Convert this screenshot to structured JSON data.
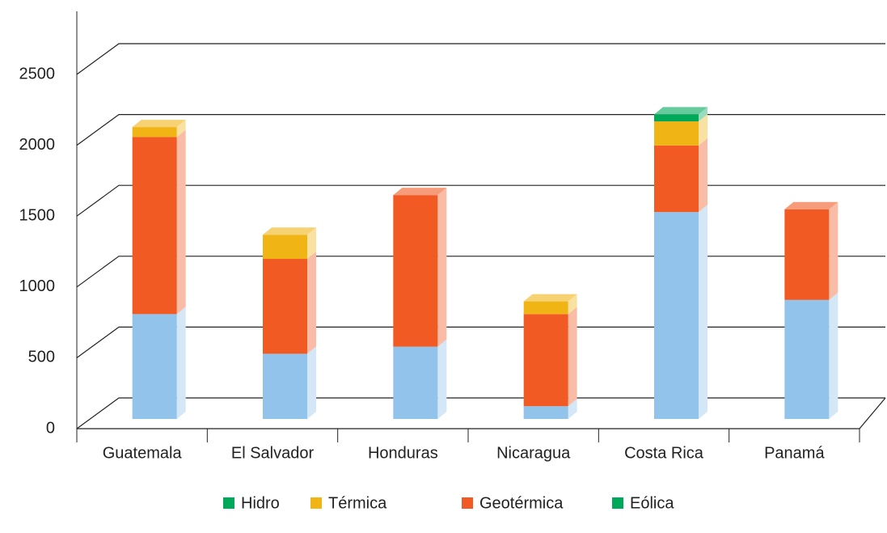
{
  "chart_data": {
    "type": "bar3d_stacked",
    "categories": [
      "Guatemala",
      "El Salvador",
      "Honduras",
      "Nicaragua",
      "Costa Rica",
      "Panamá"
    ],
    "series": [
      {
        "name": "Hidro",
        "color": "#92c3ea",
        "legend_color": "#00a85a",
        "values": [
          740,
          460,
          510,
          90,
          1460,
          840
        ]
      },
      {
        "name": "Térmica",
        "color": "#f0b414",
        "legend_color": "#f0b414",
        "values": [
          70,
          170,
          null,
          90,
          170,
          null
        ]
      },
      {
        "name": "Geotérmica",
        "color": "#f15a22",
        "legend_color": "#f15a22",
        "values": [
          1250,
          670,
          1070,
          650,
          470,
          640
        ]
      },
      {
        "name": "Eólica",
        "color": "#00a85a",
        "legend_color": "#00a85a",
        "values": [
          null,
          null,
          null,
          null,
          50,
          null
        ]
      }
    ],
    "stack_order": [
      0,
      2,
      1,
      3
    ],
    "ylim": [
      0,
      2500
    ],
    "yticks": [
      0,
      500,
      1000,
      1500,
      2000,
      2500
    ],
    "grid": true
  }
}
